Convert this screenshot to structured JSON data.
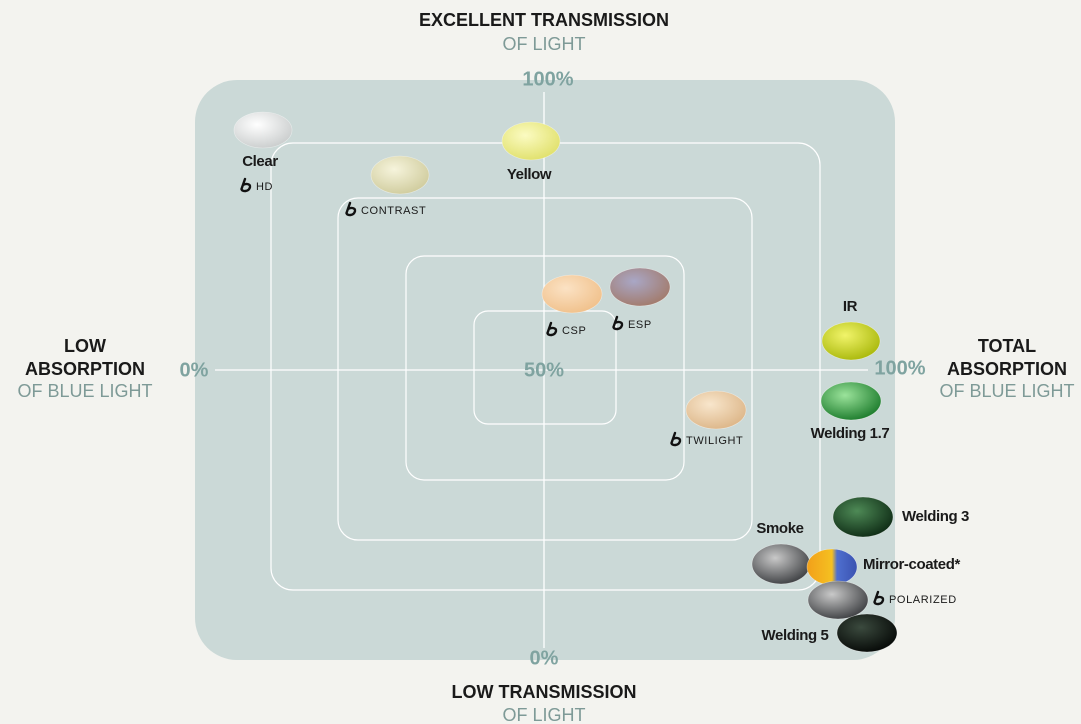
{
  "axes": {
    "top": {
      "title": "EXCELLENT TRANSMISSION",
      "subtitle": "OF LIGHT",
      "value": "100%"
    },
    "bottom": {
      "title": "LOW TRANSMISSION",
      "subtitle": "OF LIGHT",
      "value": "0%"
    },
    "left": {
      "title_line1": "LOW",
      "title_line2": "ABSORPTION",
      "subtitle": "OF BLUE LIGHT",
      "value": "0%"
    },
    "right": {
      "title_line1": "TOTAL",
      "title_line2": "ABSORPTION",
      "subtitle": "OF BLUE LIGHT",
      "value": "100%"
    },
    "center": "50%"
  },
  "lenses": [
    {
      "label": "Clear",
      "logo": "HD"
    },
    {
      "logo": "CONTRAST"
    },
    {
      "label": "Yellow"
    },
    {
      "logo": "CSP"
    },
    {
      "logo": "ESP"
    },
    {
      "label": "IR"
    },
    {
      "logo": "TWILIGHT"
    },
    {
      "label": "Welding 1.7"
    },
    {
      "label": "Welding 3"
    },
    {
      "label": "Smoke"
    },
    {
      "label": "Mirror-coated*"
    },
    {
      "logo": "POLARIZED"
    },
    {
      "label": "Welding 5"
    }
  ]
}
